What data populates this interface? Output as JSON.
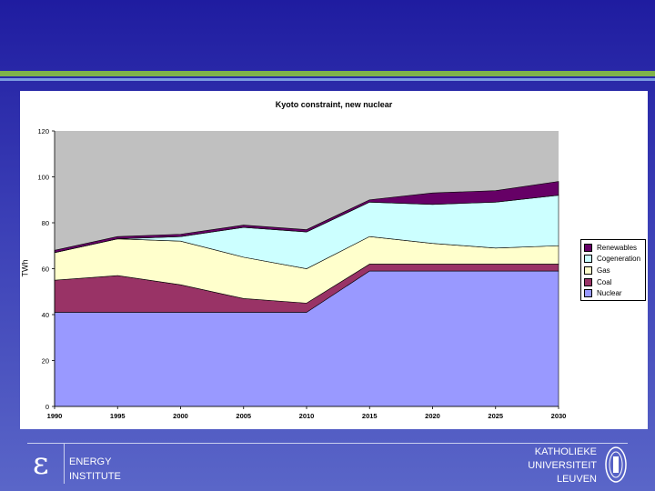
{
  "footer": {
    "institute_line1": "ENERGY",
    "institute_line2": "INSTITUTE",
    "university_line1": "KATHOLIEKE",
    "university_line2": "UNIVERSITEIT",
    "university_line3": "LEUVEN",
    "logo_glyph": "ε"
  },
  "colors": {
    "background": "#3b3fb6",
    "stripe_green": "#7fb24a",
    "nuclear": "#9999ff",
    "coal": "#993366",
    "gas": "#ffffcc",
    "cogeneration": "#ccffff",
    "renewables": "#660066",
    "plot_area": "#c0c0c0"
  },
  "chart_data": {
    "type": "area",
    "title": "Kyoto constraint, new nuclear",
    "ylabel": "TWh",
    "xlabel": "",
    "x": [
      1990,
      1995,
      2000,
      2005,
      2010,
      2015,
      2020,
      2025,
      2030
    ],
    "x_tick_labels": [
      "1990",
      "1995",
      "2000",
      "2005",
      "2010",
      "2015",
      "2020",
      "2025",
      "2030"
    ],
    "y_tick_labels": [
      "0",
      "20",
      "40",
      "60",
      "80",
      "100",
      "120"
    ],
    "ylim": [
      0,
      120
    ],
    "stacked": true,
    "grid": false,
    "legend_position": "right",
    "series": [
      {
        "name": "Nuclear",
        "values": [
          41,
          41,
          41,
          41,
          41,
          59,
          59,
          59,
          59
        ]
      },
      {
        "name": "Coal",
        "values": [
          14,
          16,
          12,
          6,
          4,
          3,
          3,
          3,
          3
        ]
      },
      {
        "name": "Gas",
        "values": [
          12,
          16,
          19,
          18,
          15,
          12,
          9,
          7,
          8
        ]
      },
      {
        "name": "Cogeneration",
        "values": [
          0,
          0,
          2,
          13,
          16,
          15,
          17,
          20,
          22
        ]
      },
      {
        "name": "Renewables",
        "values": [
          1,
          1,
          1,
          1,
          1,
          1,
          5,
          5,
          6
        ]
      }
    ],
    "legend_order": [
      "Renewables",
      "Cogeneration",
      "Gas",
      "Coal",
      "Nuclear"
    ]
  }
}
